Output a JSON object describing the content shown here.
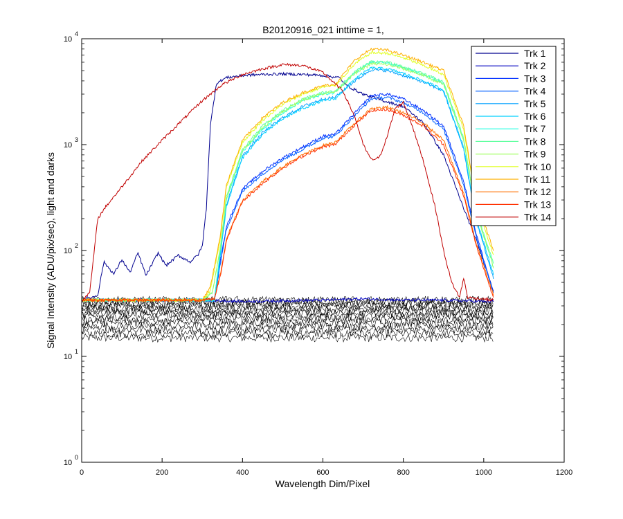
{
  "chart_data": {
    "type": "line",
    "title": "B20120916_021 inttime = 1,",
    "xlabel": "Wavelength Dim/Pixel",
    "ylabel": "Signal Intensity (ADU/pix/sec), light and darks",
    "xlim": [
      0,
      1200
    ],
    "ylim": [
      1,
      10000
    ],
    "yscale": "log",
    "x_ticks": [
      0,
      200,
      400,
      600,
      800,
      1000,
      1200
    ],
    "y_ticks": [
      {
        "base": "10",
        "exp": "0",
        "value": 1
      },
      {
        "base": "10",
        "exp": "1",
        "value": 10
      },
      {
        "base": "10",
        "exp": "2",
        "value": 100
      },
      {
        "base": "10",
        "exp": "3",
        "value": 1000
      },
      {
        "base": "10",
        "exp": "4",
        "value": 10000
      }
    ],
    "legend_position": "top-right",
    "darks": {
      "name": "darks",
      "color": "#000000",
      "count": 14,
      "low": 15,
      "high": 34,
      "x_range": [
        0,
        1024
      ]
    },
    "series": [
      {
        "name": "Trk 1",
        "color": "#00008f",
        "points": [
          [
            0,
            35
          ],
          [
            25,
            36
          ],
          [
            40,
            38
          ],
          [
            55,
            78
          ],
          [
            80,
            60
          ],
          [
            100,
            82
          ],
          [
            120,
            62
          ],
          [
            140,
            95
          ],
          [
            160,
            58
          ],
          [
            190,
            95
          ],
          [
            210,
            72
          ],
          [
            240,
            90
          ],
          [
            270,
            78
          ],
          [
            290,
            92
          ],
          [
            300,
            110
          ],
          [
            310,
            250
          ],
          [
            320,
            1500
          ],
          [
            335,
            3800
          ],
          [
            360,
            4300
          ],
          [
            400,
            4500
          ],
          [
            450,
            4600
          ],
          [
            500,
            4650
          ],
          [
            550,
            4600
          ],
          [
            600,
            4500
          ],
          [
            640,
            4300
          ],
          [
            660,
            3600
          ],
          [
            700,
            3000
          ],
          [
            750,
            2600
          ],
          [
            800,
            2300
          ],
          [
            850,
            1600
          ],
          [
            900,
            800
          ],
          [
            950,
            250
          ],
          [
            980,
            130
          ],
          [
            1024,
            42
          ]
        ]
      },
      {
        "name": "Trk 2",
        "color": "#0000c0",
        "points": [
          [
            0,
            34
          ],
          [
            300,
            34
          ],
          [
            400,
            33
          ],
          [
            600,
            34
          ],
          [
            700,
            35
          ],
          [
            800,
            34
          ],
          [
            900,
            34
          ],
          [
            1000,
            33
          ],
          [
            1024,
            33
          ]
        ]
      },
      {
        "name": "Trk 3",
        "color": "#0030ff",
        "points": [
          [
            0,
            34
          ],
          [
            300,
            34
          ],
          [
            330,
            34
          ],
          [
            345,
            80
          ],
          [
            360,
            170
          ],
          [
            400,
            380
          ],
          [
            450,
            560
          ],
          [
            500,
            750
          ],
          [
            550,
            950
          ],
          [
            600,
            1200
          ],
          [
            630,
            1250
          ],
          [
            680,
            2000
          ],
          [
            720,
            2900
          ],
          [
            760,
            3000
          ],
          [
            800,
            2700
          ],
          [
            850,
            2100
          ],
          [
            900,
            1500
          ],
          [
            950,
            450
          ],
          [
            980,
            150
          ],
          [
            1024,
            40
          ]
        ]
      },
      {
        "name": "Trk 4",
        "color": "#0060ff",
        "points": [
          [
            0,
            34
          ],
          [
            300,
            34
          ],
          [
            330,
            34
          ],
          [
            345,
            75
          ],
          [
            360,
            160
          ],
          [
            400,
            360
          ],
          [
            450,
            530
          ],
          [
            500,
            720
          ],
          [
            550,
            900
          ],
          [
            600,
            1150
          ],
          [
            630,
            1200
          ],
          [
            680,
            1900
          ],
          [
            720,
            2700
          ],
          [
            760,
            2800
          ],
          [
            800,
            2500
          ],
          [
            850,
            2000
          ],
          [
            900,
            1400
          ],
          [
            950,
            420
          ],
          [
            980,
            140
          ],
          [
            1024,
            40
          ]
        ]
      },
      {
        "name": "Trk 5",
        "color": "#00a0ff",
        "points": [
          [
            0,
            34
          ],
          [
            300,
            34
          ],
          [
            330,
            34
          ],
          [
            345,
            95
          ],
          [
            360,
            270
          ],
          [
            400,
            780
          ],
          [
            450,
            1300
          ],
          [
            500,
            1800
          ],
          [
            550,
            2300
          ],
          [
            600,
            2700
          ],
          [
            630,
            2800
          ],
          [
            680,
            4000
          ],
          [
            720,
            5100
          ],
          [
            760,
            5000
          ],
          [
            800,
            4500
          ],
          [
            850,
            3900
          ],
          [
            900,
            3200
          ],
          [
            950,
            900
          ],
          [
            980,
            200
          ],
          [
            1024,
            55
          ]
        ]
      },
      {
        "name": "Trk 6",
        "color": "#00d0ff",
        "points": [
          [
            0,
            34
          ],
          [
            300,
            34
          ],
          [
            330,
            34
          ],
          [
            345,
            90
          ],
          [
            360,
            260
          ],
          [
            400,
            750
          ],
          [
            450,
            1250
          ],
          [
            500,
            1750
          ],
          [
            550,
            2200
          ],
          [
            600,
            2600
          ],
          [
            630,
            2700
          ],
          [
            680,
            4200
          ],
          [
            720,
            5300
          ],
          [
            760,
            5200
          ],
          [
            800,
            4700
          ],
          [
            850,
            4000
          ],
          [
            900,
            3300
          ],
          [
            950,
            950
          ],
          [
            980,
            210
          ],
          [
            1024,
            60
          ]
        ]
      },
      {
        "name": "Trk 7",
        "color": "#20ffe0",
        "points": [
          [
            0,
            34
          ],
          [
            300,
            34
          ],
          [
            330,
            34
          ],
          [
            345,
            100
          ],
          [
            360,
            300
          ],
          [
            400,
            850
          ],
          [
            450,
            1400
          ],
          [
            500,
            2000
          ],
          [
            550,
            2600
          ],
          [
            600,
            3000
          ],
          [
            630,
            3100
          ],
          [
            680,
            4800
          ],
          [
            720,
            6000
          ],
          [
            760,
            5900
          ],
          [
            800,
            5300
          ],
          [
            850,
            4600
          ],
          [
            900,
            3800
          ],
          [
            950,
            1100
          ],
          [
            980,
            240
          ],
          [
            1024,
            70
          ]
        ]
      },
      {
        "name": "Trk 8",
        "color": "#60ff9f",
        "points": [
          [
            0,
            34
          ],
          [
            300,
            34
          ],
          [
            325,
            40
          ],
          [
            345,
            110
          ],
          [
            360,
            320
          ],
          [
            400,
            900
          ],
          [
            450,
            1500
          ],
          [
            500,
            2100
          ],
          [
            550,
            2700
          ],
          [
            600,
            3100
          ],
          [
            630,
            3200
          ],
          [
            680,
            4900
          ],
          [
            720,
            6100
          ],
          [
            760,
            6000
          ],
          [
            800,
            5400
          ],
          [
            850,
            4700
          ],
          [
            900,
            3900
          ],
          [
            950,
            1150
          ],
          [
            980,
            250
          ],
          [
            1024,
            75
          ]
        ]
      },
      {
        "name": "Trk 9",
        "color": "#a0ff60",
        "points": [
          [
            0,
            34
          ],
          [
            300,
            34
          ],
          [
            325,
            40
          ],
          [
            345,
            105
          ],
          [
            360,
            310
          ],
          [
            400,
            880
          ],
          [
            450,
            1450
          ],
          [
            500,
            2050
          ],
          [
            550,
            2650
          ],
          [
            600,
            3050
          ],
          [
            630,
            3150
          ],
          [
            680,
            4700
          ],
          [
            720,
            5800
          ],
          [
            760,
            5700
          ],
          [
            800,
            5200
          ],
          [
            850,
            4500
          ],
          [
            900,
            3700
          ],
          [
            950,
            1100
          ],
          [
            980,
            240
          ],
          [
            1024,
            70
          ]
        ]
      },
      {
        "name": "Trk 10",
        "color": "#e0ff20",
        "points": [
          [
            0,
            34
          ],
          [
            300,
            34
          ],
          [
            320,
            42
          ],
          [
            345,
            130
          ],
          [
            360,
            400
          ],
          [
            400,
            1050
          ],
          [
            450,
            1700
          ],
          [
            500,
            2400
          ],
          [
            550,
            3000
          ],
          [
            600,
            3500
          ],
          [
            630,
            3600
          ],
          [
            680,
            5800
          ],
          [
            720,
            7400
          ],
          [
            760,
            7300
          ],
          [
            800,
            6600
          ],
          [
            850,
            5600
          ],
          [
            900,
            4600
          ],
          [
            950,
            1400
          ],
          [
            980,
            300
          ],
          [
            1024,
            90
          ]
        ]
      },
      {
        "name": "Trk 11",
        "color": "#ffb000",
        "points": [
          [
            0,
            34
          ],
          [
            300,
            34
          ],
          [
            320,
            45
          ],
          [
            345,
            140
          ],
          [
            360,
            420
          ],
          [
            400,
            1100
          ],
          [
            450,
            1800
          ],
          [
            500,
            2500
          ],
          [
            550,
            3100
          ],
          [
            600,
            3600
          ],
          [
            630,
            3700
          ],
          [
            680,
            6300
          ],
          [
            720,
            8000
          ],
          [
            760,
            7800
          ],
          [
            800,
            7000
          ],
          [
            850,
            6000
          ],
          [
            900,
            5000
          ],
          [
            950,
            1500
          ],
          [
            980,
            320
          ],
          [
            1024,
            100
          ]
        ]
      },
      {
        "name": "Trk 12",
        "color": "#ff7000",
        "points": [
          [
            0,
            34
          ],
          [
            300,
            34
          ],
          [
            330,
            35
          ],
          [
            345,
            60
          ],
          [
            360,
            130
          ],
          [
            400,
            300
          ],
          [
            450,
            450
          ],
          [
            500,
            620
          ],
          [
            550,
            800
          ],
          [
            600,
            980
          ],
          [
            630,
            1050
          ],
          [
            680,
            1600
          ],
          [
            720,
            2200
          ],
          [
            760,
            2250
          ],
          [
            800,
            2000
          ],
          [
            850,
            1600
          ],
          [
            900,
            1100
          ],
          [
            950,
            350
          ],
          [
            980,
            120
          ],
          [
            1024,
            38
          ]
        ]
      },
      {
        "name": "Trk 13",
        "color": "#ff3000",
        "points": [
          [
            0,
            34
          ],
          [
            300,
            34
          ],
          [
            330,
            35
          ],
          [
            345,
            58
          ],
          [
            360,
            125
          ],
          [
            400,
            290
          ],
          [
            450,
            430
          ],
          [
            500,
            600
          ],
          [
            550,
            780
          ],
          [
            600,
            950
          ],
          [
            630,
            1000
          ],
          [
            680,
            1550
          ],
          [
            720,
            2100
          ],
          [
            760,
            2150
          ],
          [
            800,
            1900
          ],
          [
            850,
            1500
          ],
          [
            900,
            1000
          ],
          [
            950,
            330
          ],
          [
            980,
            115
          ],
          [
            1024,
            36
          ]
        ]
      },
      {
        "name": "Trk 14",
        "color": "#c00000",
        "points": [
          [
            0,
            34
          ],
          [
            20,
            40
          ],
          [
            40,
            200
          ],
          [
            60,
            260
          ],
          [
            100,
            400
          ],
          [
            150,
            700
          ],
          [
            200,
            1100
          ],
          [
            250,
            1700
          ],
          [
            300,
            2600
          ],
          [
            350,
            3700
          ],
          [
            400,
            4600
          ],
          [
            450,
            5200
          ],
          [
            500,
            5700
          ],
          [
            550,
            5600
          ],
          [
            600,
            4800
          ],
          [
            650,
            3200
          ],
          [
            680,
            1800
          ],
          [
            700,
            1000
          ],
          [
            720,
            720
          ],
          [
            740,
            750
          ],
          [
            760,
            1200
          ],
          [
            780,
            2200
          ],
          [
            800,
            2500
          ],
          [
            820,
            1600
          ],
          [
            850,
            700
          ],
          [
            880,
            250
          ],
          [
            900,
            100
          ],
          [
            920,
            50
          ],
          [
            940,
            36
          ],
          [
            950,
            55
          ],
          [
            960,
            36
          ],
          [
            1024,
            34
          ]
        ]
      }
    ]
  }
}
